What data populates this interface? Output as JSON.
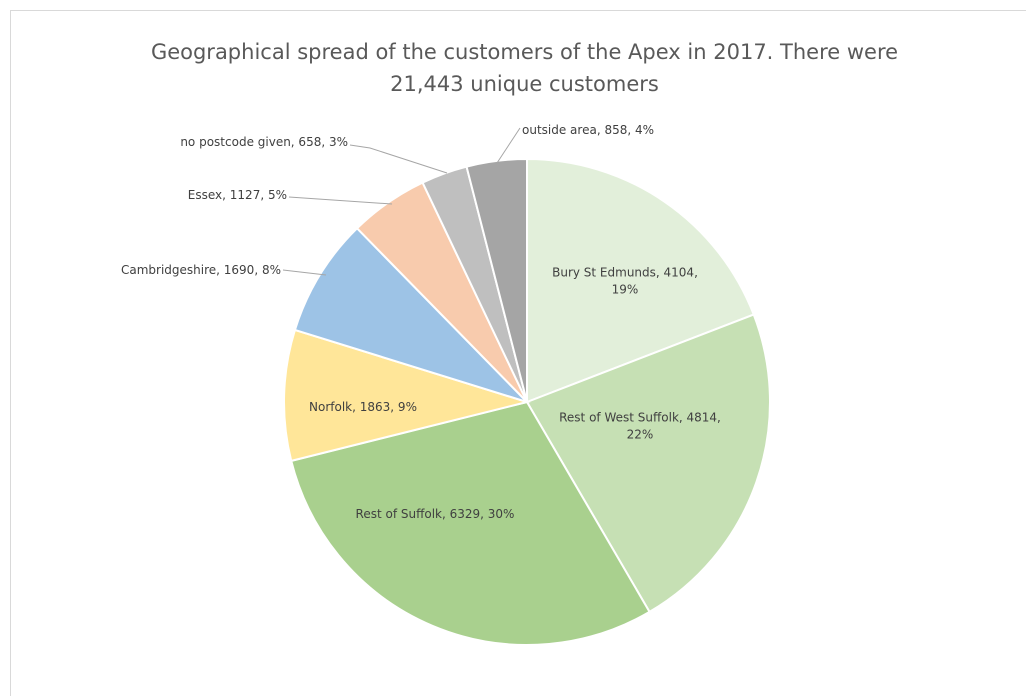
{
  "chart_data": {
    "type": "pie",
    "title_lines": [
      "Geographical spread of the customers of the Apex in 2017. There were",
      "21,443 unique customers"
    ],
    "slices": [
      {
        "name": "Bury St Edmunds",
        "value": 4104,
        "percent": "19%",
        "color": "#e2efda",
        "label_lines": [
          "Bury St Edmunds, 4104,",
          "19%"
        ]
      },
      {
        "name": "Rest of West Suffolk",
        "value": 4814,
        "percent": "22%",
        "color": "#c6e0b4",
        "label_lines": [
          "Rest of West Suffolk, 4814,",
          "22%"
        ]
      },
      {
        "name": "Rest of Suffolk",
        "value": 6329,
        "percent": "30%",
        "color": "#a9d08e",
        "label_lines": [
          "Rest of Suffolk, 6329, 30%"
        ]
      },
      {
        "name": "Norfolk",
        "value": 1863,
        "percent": "9%",
        "color": "#ffe699",
        "label_lines": [
          "Norfolk, 1863, 9%"
        ]
      },
      {
        "name": "Cambridgeshire",
        "value": 1690,
        "percent": "8%",
        "color": "#9dc3e6",
        "label_lines": [
          "Cambridgeshire, 1690, 8%"
        ]
      },
      {
        "name": "Essex",
        "value": 1127,
        "percent": "5%",
        "color": "#f8cbad",
        "label_lines": [
          "Essex, 1127, 5%"
        ]
      },
      {
        "name": "no postcode given",
        "value": 658,
        "percent": "3%",
        "color": "#bfbfbf",
        "label_lines": [
          "no postcode given, 658, 3%"
        ]
      },
      {
        "name": "outside area",
        "value": 858,
        "percent": "4%",
        "color": "#a5a5a5",
        "label_lines": [
          "outside area, 858, 4%"
        ]
      }
    ]
  }
}
